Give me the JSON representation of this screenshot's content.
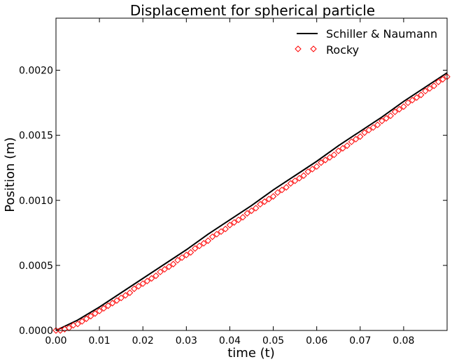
{
  "chart_data": {
    "type": "line",
    "title": "Displacement for spherical particle",
    "xlabel": "time (t)",
    "ylabel": "Position (m)",
    "xlim": [
      0.0,
      0.09
    ],
    "ylim": [
      0.0,
      0.0024
    ],
    "x_ticks": [
      "0.00",
      "0.01",
      "0.02",
      "0.03",
      "0.04",
      "0.05",
      "0.06",
      "0.07",
      "0.08"
    ],
    "y_ticks": [
      "0.0000",
      "0.0005",
      "0.0010",
      "0.0015",
      "0.0020"
    ],
    "grid": false,
    "legend_position": "top-right",
    "series": [
      {
        "name": "Schiller & Naumann",
        "style": "solid-line",
        "color": "#000000",
        "x": [
          0.0,
          0.005,
          0.01,
          0.015,
          0.02,
          0.025,
          0.03,
          0.035,
          0.04,
          0.045,
          0.05,
          0.055,
          0.06,
          0.065,
          0.07,
          0.075,
          0.08,
          0.085,
          0.09
        ],
        "y": [
          0.0,
          8e-05,
          0.00018,
          0.00029,
          0.0004,
          0.00051,
          0.00062,
          0.00074,
          0.00085,
          0.00096,
          0.00108,
          0.00119,
          0.0013,
          0.00142,
          0.00153,
          0.00164,
          0.00176,
          0.00187,
          0.00198
        ]
      },
      {
        "name": "Rocky",
        "style": "diamond-markers",
        "color": "#ff0000",
        "x": [
          0.0,
          0.001,
          0.002,
          0.003,
          0.004,
          0.005,
          0.006,
          0.007,
          0.008,
          0.009,
          0.01,
          0.011,
          0.012,
          0.013,
          0.014,
          0.015,
          0.016,
          0.017,
          0.018,
          0.019,
          0.02,
          0.021,
          0.022,
          0.023,
          0.024,
          0.025,
          0.026,
          0.027,
          0.028,
          0.029,
          0.03,
          0.031,
          0.032,
          0.033,
          0.034,
          0.035,
          0.036,
          0.037,
          0.038,
          0.039,
          0.04,
          0.041,
          0.042,
          0.043,
          0.044,
          0.045,
          0.046,
          0.047,
          0.048,
          0.049,
          0.05,
          0.051,
          0.052,
          0.053,
          0.054,
          0.055,
          0.056,
          0.057,
          0.058,
          0.059,
          0.06,
          0.061,
          0.062,
          0.063,
          0.064,
          0.065,
          0.066,
          0.067,
          0.068,
          0.069,
          0.07,
          0.071,
          0.072,
          0.073,
          0.074,
          0.075,
          0.076,
          0.077,
          0.078,
          0.079,
          0.08,
          0.081,
          0.082,
          0.083,
          0.084,
          0.085,
          0.086,
          0.087,
          0.088,
          0.089,
          0.09
        ],
        "y": [
          0.0,
          0.0,
          1e-05,
          2e-05,
          4e-05,
          5e-05,
          7e-05,
          9e-05,
          0.00011,
          0.00013,
          0.00015,
          0.00017,
          0.00019,
          0.00021,
          0.00023,
          0.00025,
          0.00027,
          0.00029,
          0.00032,
          0.00034,
          0.00036,
          0.00038,
          0.0004,
          0.00042,
          0.00045,
          0.00047,
          0.00049,
          0.00051,
          0.00054,
          0.00056,
          0.00058,
          0.0006,
          0.00063,
          0.00065,
          0.00067,
          0.00069,
          0.00072,
          0.00074,
          0.00076,
          0.00078,
          0.00081,
          0.00083,
          0.00085,
          0.00087,
          0.0009,
          0.00092,
          0.00094,
          0.00097,
          0.00099,
          0.00101,
          0.00103,
          0.00106,
          0.00108,
          0.0011,
          0.00113,
          0.00115,
          0.00117,
          0.00119,
          0.00122,
          0.00124,
          0.00126,
          0.00129,
          0.00131,
          0.00133,
          0.00135,
          0.00138,
          0.0014,
          0.00142,
          0.00145,
          0.00147,
          0.00149,
          0.00152,
          0.00154,
          0.00156,
          0.00158,
          0.00161,
          0.00163,
          0.00165,
          0.00168,
          0.0017,
          0.00172,
          0.00175,
          0.00177,
          0.00179,
          0.00181,
          0.00184,
          0.00186,
          0.00188,
          0.00191,
          0.00193,
          0.00195
        ]
      }
    ]
  }
}
